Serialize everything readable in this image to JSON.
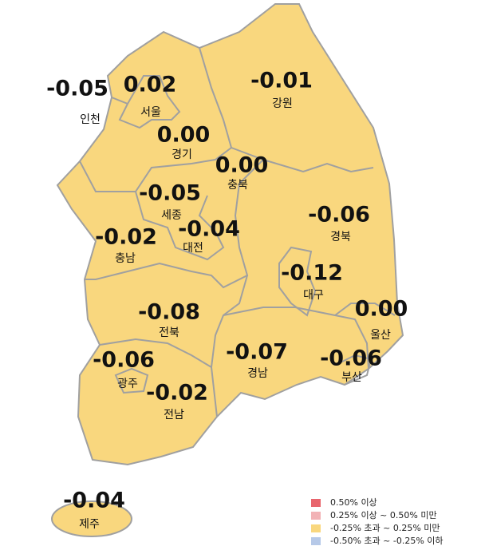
{
  "regions": [
    {
      "name": "인천",
      "value": "-0.05"
    },
    {
      "name": "서울",
      "value": "0.02"
    },
    {
      "name": "경기",
      "value": "0.00"
    },
    {
      "name": "강원",
      "value": "-0.01"
    },
    {
      "name": "충북",
      "value": "0.00"
    },
    {
      "name": "세종",
      "value": "-0.05"
    },
    {
      "name": "대전",
      "value": "-0.04"
    },
    {
      "name": "충남",
      "value": "-0.02"
    },
    {
      "name": "경북",
      "value": "-0.06"
    },
    {
      "name": "대구",
      "value": "-0.12"
    },
    {
      "name": "울산",
      "value": "0.00"
    },
    {
      "name": "전북",
      "value": "-0.08"
    },
    {
      "name": "경남",
      "value": "-0.07"
    },
    {
      "name": "부산",
      "value": "-0.06"
    },
    {
      "name": "광주",
      "value": "-0.06"
    },
    {
      "name": "전남",
      "value": "-0.02"
    },
    {
      "name": "제주",
      "value": "-0.04"
    }
  ],
  "legend": [
    {
      "label": "0.50% 이상",
      "color": "#e8656d"
    },
    {
      "label": "0.25% 이상 ~ 0.50% 미만",
      "color": "#f2b3b6"
    },
    {
      "label": "-0.25% 초과 ~ 0.25% 미만",
      "color": "#f9d77e"
    },
    {
      "label": "-0.50% 초과 ~ -0.25% 이하",
      "color": "#b6c9e8"
    }
  ]
}
